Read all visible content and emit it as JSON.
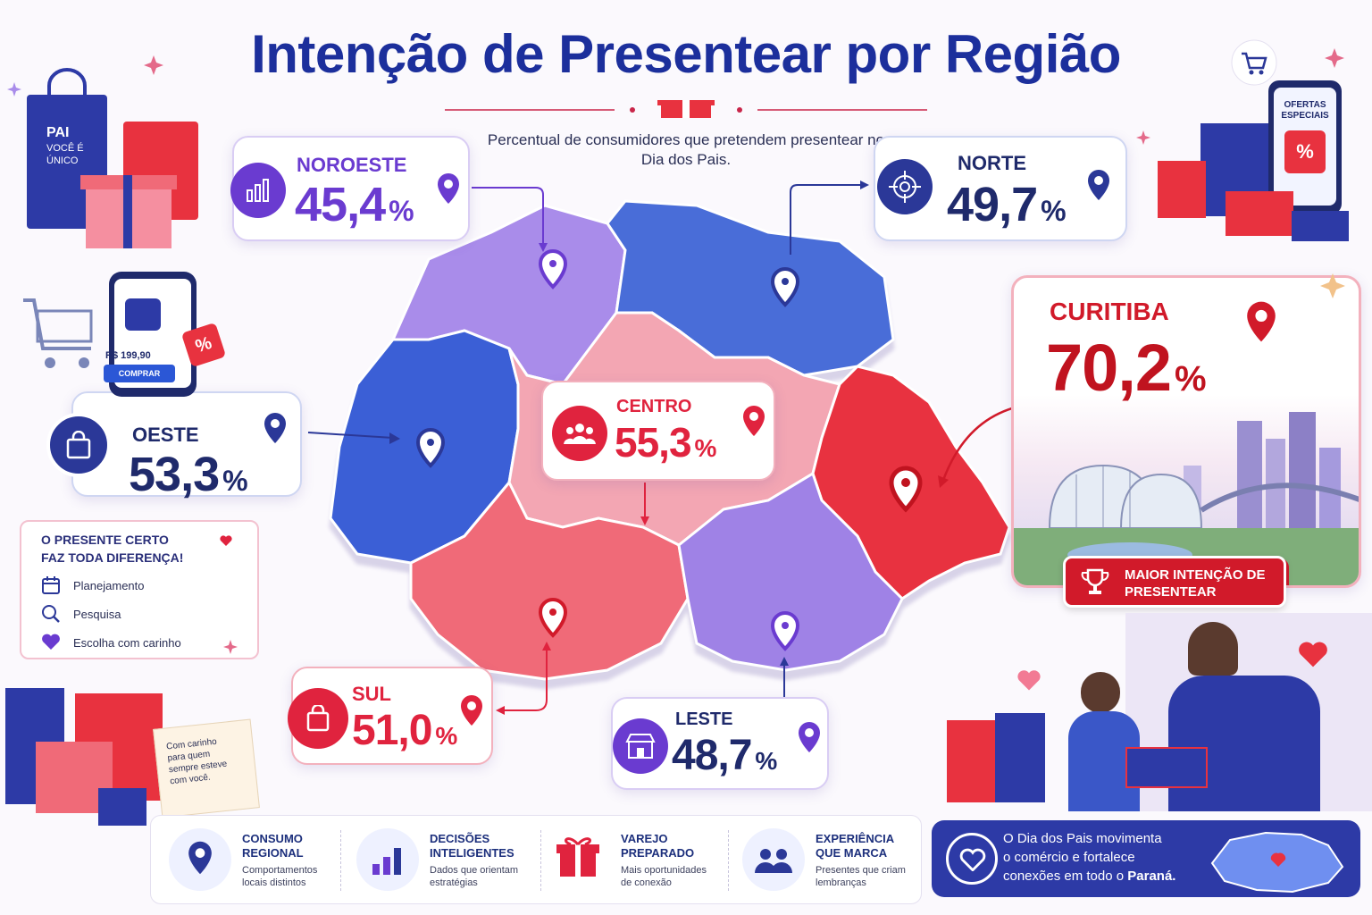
{
  "title": "Intenção de Presentear por Região",
  "subtitle": "Percentual de consumidores que pretendem presentear no Dia dos Pais.",
  "regions": {
    "noroeste": {
      "name": "NOROESTE",
      "value": "45,4",
      "unit": "%",
      "color": "#6a3bd0"
    },
    "norte": {
      "name": "NORTE",
      "value": "49,7",
      "unit": "%",
      "color": "#2b3898"
    },
    "centro": {
      "name": "CENTRO",
      "value": "55,3",
      "unit": "%",
      "color": "#e0233e"
    },
    "oeste": {
      "name": "OESTE",
      "value": "53,3",
      "unit": "%",
      "color": "#2b3898"
    },
    "sul": {
      "name": "SUL",
      "value": "51,0",
      "unit": "%",
      "color": "#e0233e"
    },
    "leste": {
      "name": "LESTE",
      "value": "48,7",
      "unit": "%",
      "color": "#6a3bd0"
    },
    "curitiba": {
      "name": "CURITIBA",
      "value": "70,2",
      "unit": "%",
      "color": "#d11a2a",
      "badge": "MAIOR INTENÇÃO DE PRESENTEAR"
    }
  },
  "tip": {
    "title_line1": "O PRESENTE CERTO",
    "title_line2": "FAZ TODA DIFERENÇA!",
    "items": [
      "Planejamento",
      "Pesquisa",
      "Escolha com carinho"
    ]
  },
  "bag_text": {
    "line1": "PAI",
    "line2": "VOCÊ É",
    "line3": "ÚNICO"
  },
  "phone": {
    "price": "R$ 199,90",
    "buy": "COMPRAR"
  },
  "promo_phone": {
    "line1": "OFERTAS",
    "line2": "ESPECIAIS",
    "badge": "%"
  },
  "note": [
    "Com carinho",
    "para quem",
    "sempre esteve",
    "com você."
  ],
  "features": [
    {
      "title1": "CONSUMO",
      "title2": "REGIONAL",
      "desc1": "Comportamentos",
      "desc2": "locais distintos",
      "icon": "location-icon"
    },
    {
      "title1": "DECISÕES",
      "title2": "INTELIGENTES",
      "desc1": "Dados que orientam",
      "desc2": "estratégias",
      "icon": "bar-chart-icon"
    },
    {
      "title1": "VAREJO",
      "title2": "PREPARADO",
      "desc1": "Mais oportunidades",
      "desc2": "de conexão",
      "icon": "gift-icon"
    },
    {
      "title1": "EXPERIÊNCIA",
      "title2": "QUE MARCA",
      "desc1": "Presentes que criam",
      "desc2": "lembranças",
      "icon": "people-icon"
    }
  ],
  "info": {
    "line1": "O Dia dos Pais movimenta",
    "line2": "o comércio e fortalece",
    "line3": "conexões em todo o ",
    "bold": "Paraná."
  },
  "colors": {
    "title": "#1c2f9c",
    "purple": "#9a7be8",
    "blue": "#3b5fd6",
    "pink": "#f4a0b0",
    "red": "#e8323f",
    "coral": "#f06a78"
  }
}
